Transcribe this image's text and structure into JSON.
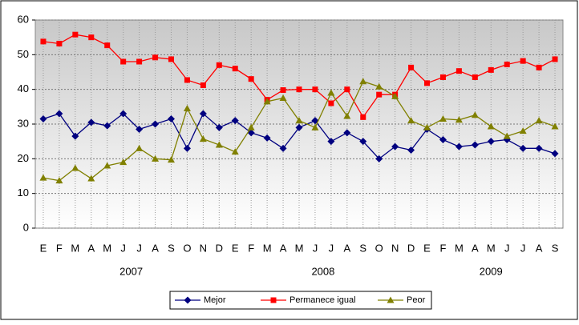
{
  "chart_data": {
    "type": "line",
    "categories": [
      "E",
      "F",
      "M",
      "A",
      "M",
      "J",
      "J",
      "A",
      "S",
      "O",
      "N",
      "D",
      "E",
      "F",
      "M",
      "A",
      "M",
      "J",
      "J",
      "A",
      "S",
      "O",
      "N",
      "D",
      "E",
      "F",
      "M",
      "A",
      "M",
      "J",
      "J",
      "A",
      "S"
    ],
    "groups": [
      "2007",
      "2008",
      "2009"
    ],
    "ylim": [
      0,
      60
    ],
    "yticks": [
      0,
      10,
      20,
      30,
      40,
      50,
      60
    ],
    "grid": true,
    "legend": "bottom",
    "series": [
      {
        "name": "Mejor",
        "color": "#000080",
        "marker": "diamond",
        "values": [
          31.5,
          33,
          26.5,
          30.5,
          29.5,
          33,
          28.5,
          30,
          31.5,
          23,
          33,
          29,
          31,
          27.5,
          26,
          23,
          29,
          31,
          25,
          27.5,
          25,
          20,
          23.5,
          22.5,
          28.5,
          25.5,
          23.5,
          24,
          25,
          25.5,
          23,
          23,
          21.5
        ]
      },
      {
        "name": "Permanece igual",
        "color": "#ff0000",
        "marker": "square",
        "values": [
          53.8,
          53.2,
          55.8,
          55,
          52.7,
          48,
          48,
          49.2,
          48.7,
          42.7,
          41.2,
          47,
          46,
          43,
          37,
          39.8,
          40,
          40,
          36,
          40,
          32,
          38.5,
          38.5,
          46.3,
          41.8,
          43.5,
          45.3,
          43.5,
          45.6,
          47.2,
          48.2,
          46.3,
          48.7
        ]
      },
      {
        "name": "Peor",
        "color": "#808000",
        "marker": "triangle",
        "values": [
          14.5,
          13.7,
          17.3,
          14.3,
          18,
          19,
          23,
          20,
          19.7,
          34.5,
          25.7,
          24,
          22,
          29,
          36.5,
          37.5,
          31,
          29,
          39,
          32.3,
          42.3,
          40.8,
          38,
          31,
          29,
          31.5,
          31.2,
          32.6,
          29.3,
          26.5,
          28,
          31,
          29.3
        ]
      }
    ]
  }
}
